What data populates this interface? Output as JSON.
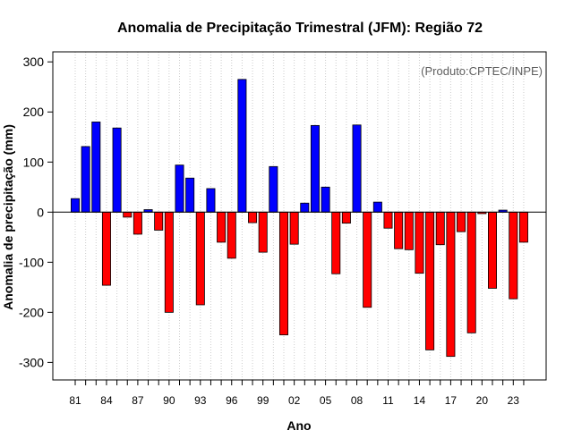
{
  "chart_data": {
    "type": "bar",
    "title": "Anomalia de Precipitação Trimestral (JFM): Região 72",
    "xlabel": "Ano",
    "ylabel": "Anomalia de precipitação (mm)",
    "credit": "(Produto:CPTEC/INPE)",
    "ylim": [
      -335,
      320
    ],
    "yticks": [
      300,
      200,
      100,
      0,
      -100,
      -200,
      -300
    ],
    "ytick_labels": [
      "300",
      "200",
      "100",
      "0",
      "-100",
      "-200",
      "-300"
    ],
    "xtick_labels": [
      "81",
      "84",
      "87",
      "90",
      "93",
      "96",
      "99",
      "02",
      "05",
      "08",
      "11",
      "14",
      "17",
      "20",
      "23"
    ],
    "xtick_every": 3,
    "categories": [
      "1981",
      "1982",
      "1983",
      "1984",
      "1985",
      "1986",
      "1987",
      "1988",
      "1989",
      "1990",
      "1991",
      "1992",
      "1993",
      "1994",
      "1995",
      "1996",
      "1997",
      "1998",
      "1999",
      "2000",
      "2001",
      "2002",
      "2003",
      "2004",
      "2005",
      "2006",
      "2007",
      "2008",
      "2009",
      "2010",
      "2011",
      "2012",
      "2013",
      "2014",
      "2015",
      "2016",
      "2017",
      "2018",
      "2019",
      "2020",
      "2021",
      "2022",
      "2023",
      "2024"
    ],
    "values": [
      27,
      131,
      180,
      -146,
      168,
      -10,
      -44,
      5,
      -36,
      -200,
      94,
      68,
      -185,
      47,
      -60,
      -92,
      265,
      -21,
      -80,
      91,
      -245,
      -64,
      18,
      173,
      50,
      -123,
      -22,
      174,
      -190,
      20,
      -32,
      -73,
      -75,
      -122,
      -275,
      -65,
      -288,
      -39,
      -241,
      -3,
      -152,
      4,
      -173,
      -60
    ],
    "positive_color": "#0000ff",
    "negative_color": "#ff0000",
    "grid": "vertical-dotted"
  }
}
